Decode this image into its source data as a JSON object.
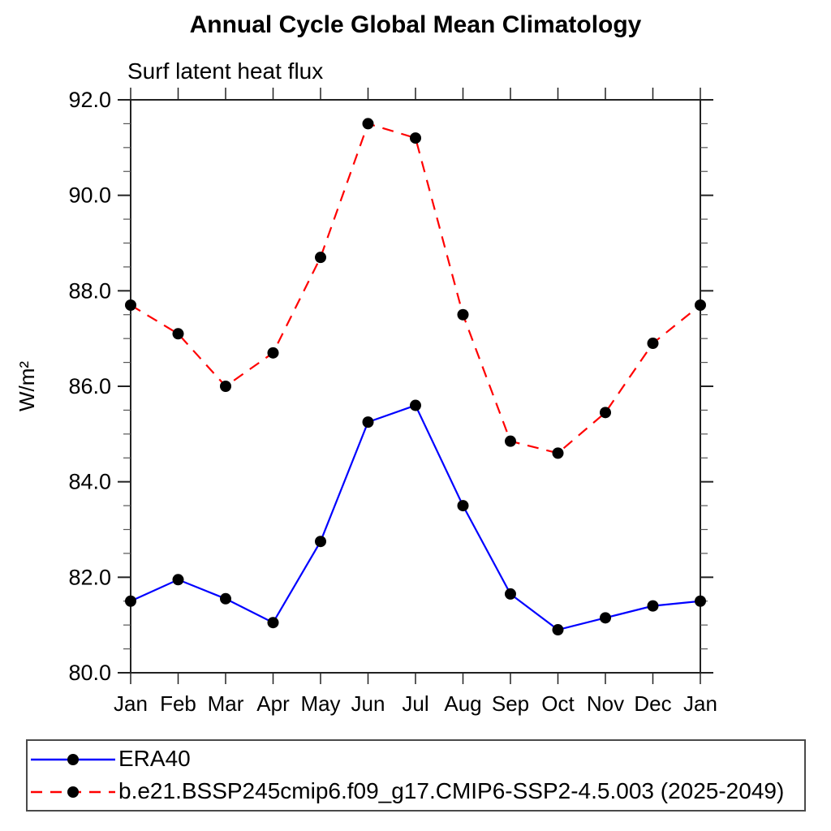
{
  "chart_data": {
    "type": "line",
    "title": "Annual Cycle Global Mean Climatology",
    "subtitle": "Surf latent heat flux",
    "xlabel": "",
    "ylabel": "W/m²",
    "categories": [
      "Jan",
      "Feb",
      "Mar",
      "Apr",
      "May",
      "Jun",
      "Jul",
      "Aug",
      "Sep",
      "Oct",
      "Nov",
      "Dec",
      "Jan"
    ],
    "ylim": [
      80.0,
      92.0
    ],
    "ytick_step": 2.0,
    "yminor_step": 0.5,
    "ytick_labels": [
      "80.0",
      "82.0",
      "84.0",
      "86.0",
      "88.0",
      "90.0",
      "92.0"
    ],
    "grid": false,
    "legend_position": "bottom-left-box",
    "axis_color": "#222222",
    "series": [
      {
        "label": "ERA40",
        "color": "#0000ff",
        "line_style": "solid",
        "marker": "circle",
        "marker_color": "#000000",
        "values": [
          81.5,
          81.95,
          81.55,
          81.05,
          82.75,
          85.25,
          85.6,
          83.5,
          81.65,
          80.9,
          81.15,
          81.4,
          81.5
        ]
      },
      {
        "label": "b.e21.BSSP245cmip6.f09_g17.CMIP6-SSP2-4.5.003 (2025-2049)",
        "color": "#ff0000",
        "line_style": "dashed",
        "marker": "circle",
        "marker_color": "#000000",
        "values": [
          87.7,
          87.1,
          86.0,
          86.7,
          88.7,
          91.5,
          91.2,
          87.5,
          84.85,
          84.6,
          85.45,
          86.9,
          87.7
        ]
      }
    ]
  }
}
